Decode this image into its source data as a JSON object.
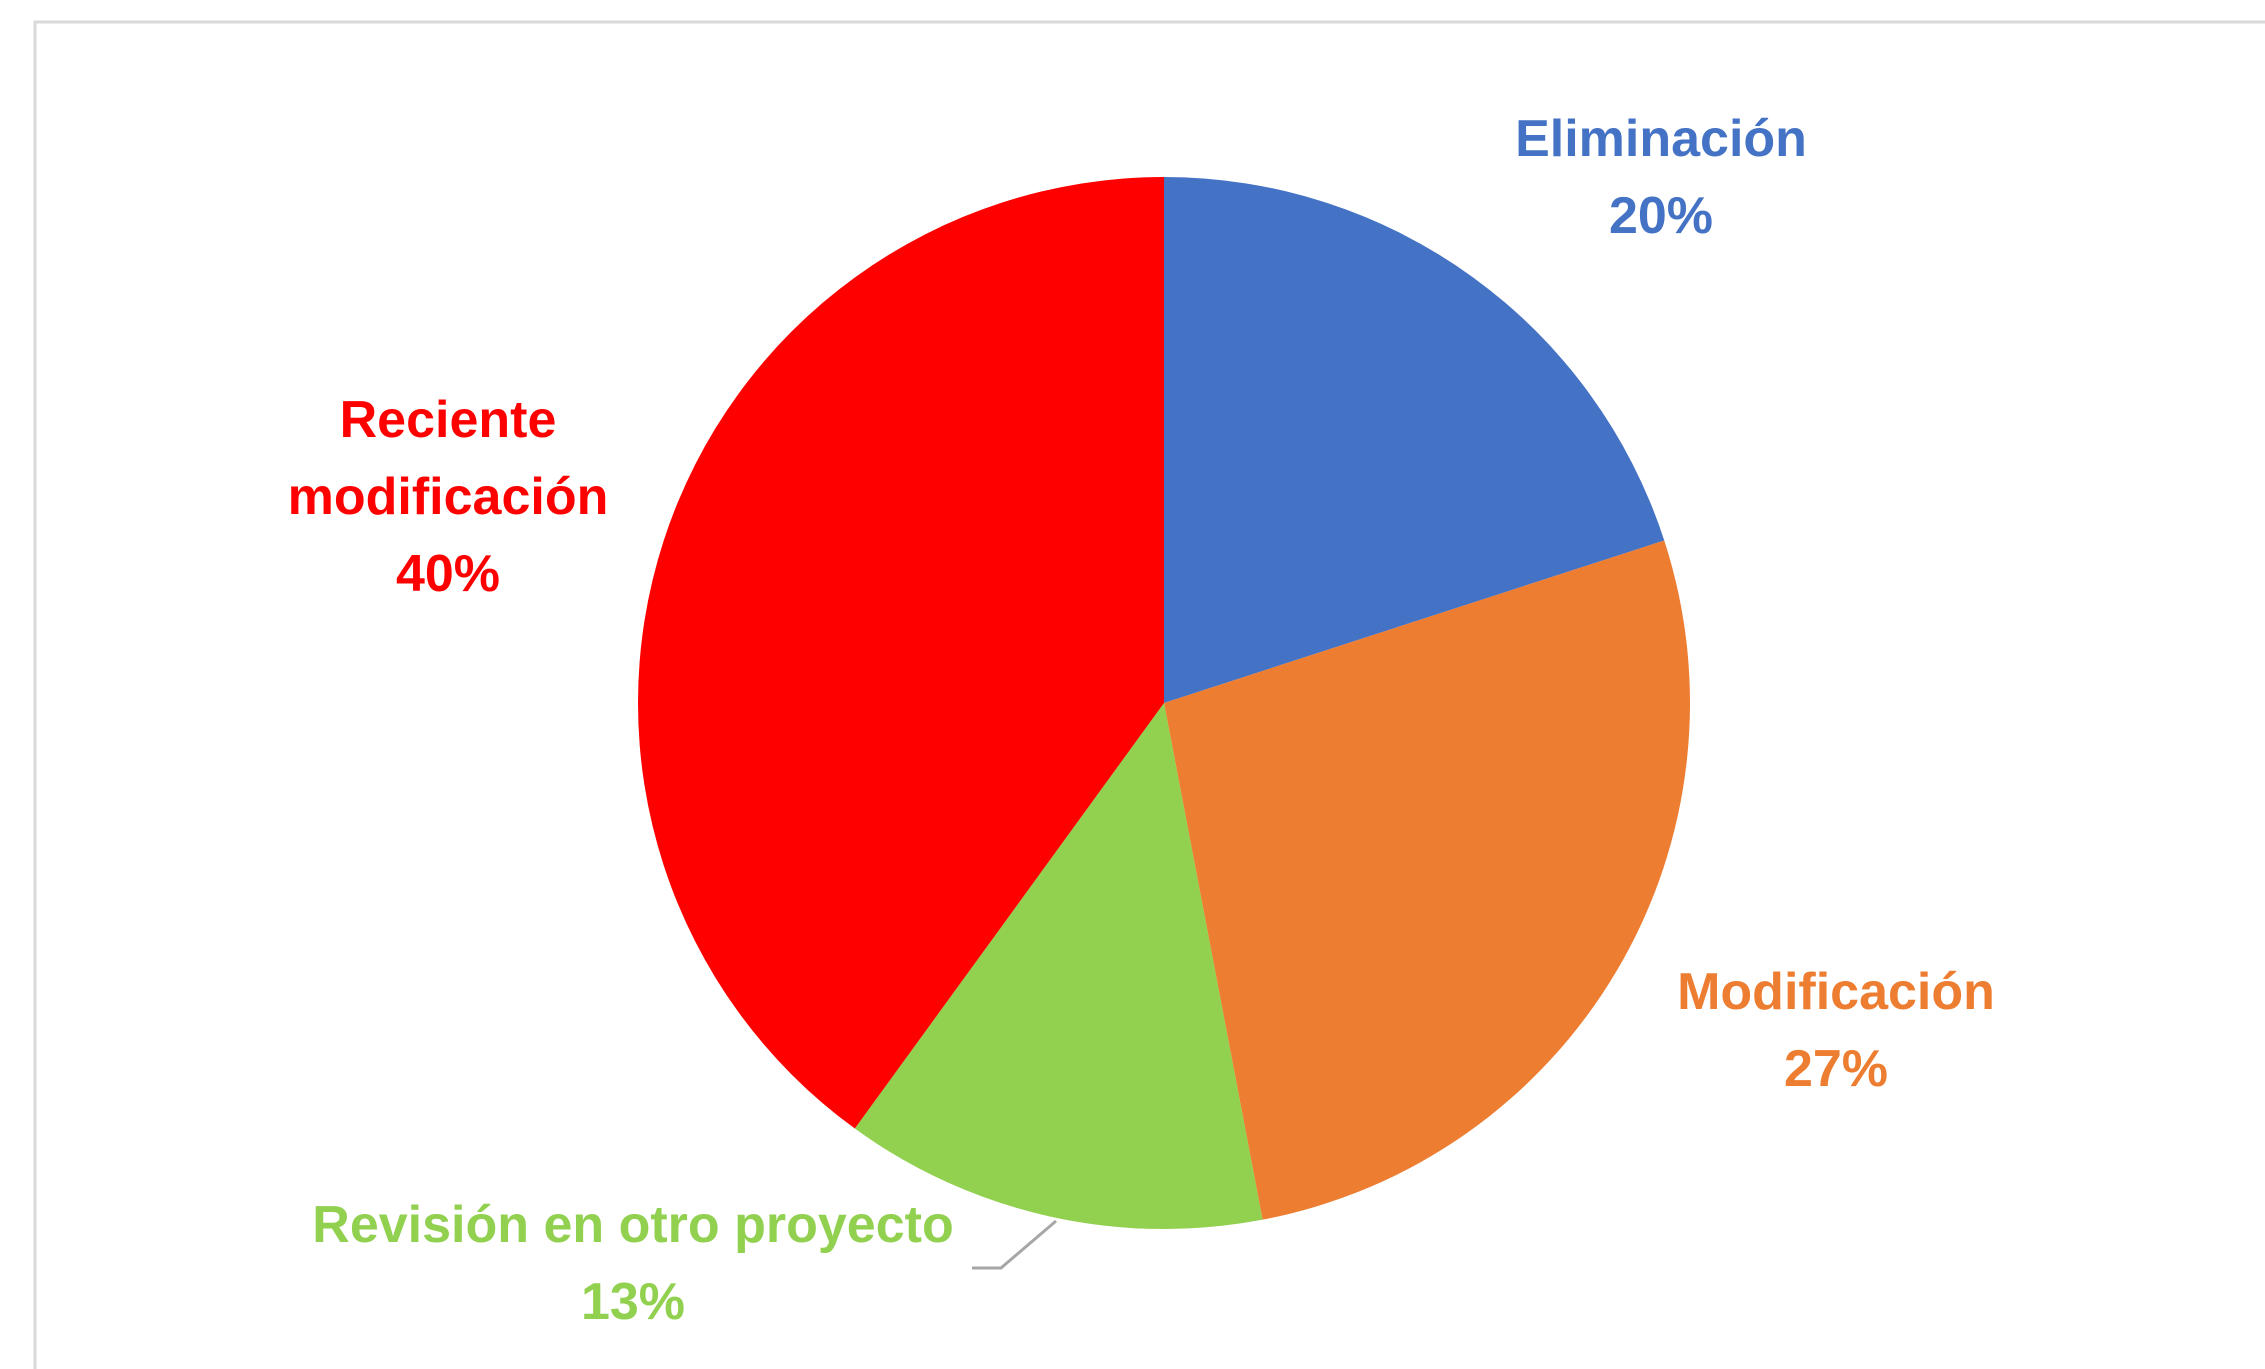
{
  "chart_data": {
    "type": "pie",
    "categories": [
      "Eliminación",
      "Modificación",
      "Revisión en otro proyecto",
      "Reciente modificación"
    ],
    "values": [
      20,
      27,
      13,
      40
    ],
    "value_labels": [
      "20%",
      "27%",
      "13%",
      "40%"
    ],
    "colors": [
      "#4472c4",
      "#ed7d31",
      "#92d050",
      "#ff0000"
    ]
  }
}
